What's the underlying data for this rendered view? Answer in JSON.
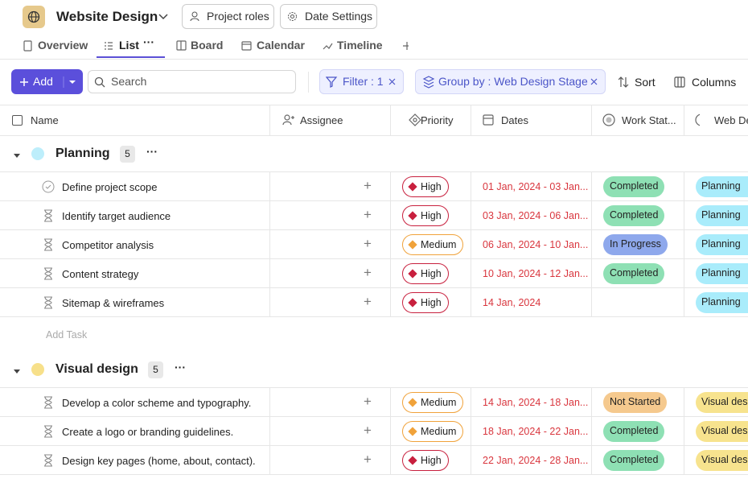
{
  "header": {
    "project": "Website Design",
    "project_roles": "Project roles",
    "date_settings": "Date Settings"
  },
  "tabs": [
    "Overview",
    "List",
    "Board",
    "Calendar",
    "Timeline"
  ],
  "toolbar": {
    "add": "Add",
    "search": "Search",
    "filter": "Filter : 1",
    "group_by": "Group by : Web Design Stage",
    "sort": "Sort",
    "columns": "Columns"
  },
  "columns": [
    "Name",
    "Assignee",
    "Priority",
    "Dates",
    "Work Stat...",
    "Web De"
  ],
  "groups": [
    {
      "name": "Planning",
      "color": "#bdeefb",
      "count": 5,
      "add_task": "Add Task",
      "tasks": [
        {
          "name": "Define project scope",
          "priority": "High",
          "priority_color": "#c8203e",
          "dates": "01 Jan, 2024 - 03 Jan...",
          "status": "Completed",
          "status_color": "#8ee0b4",
          "stage": "Planning",
          "stage_color": "#a9ecfb"
        },
        {
          "name": "Identify target audience",
          "priority": "High",
          "priority_color": "#c8203e",
          "dates": "03 Jan, 2024 - 06 Jan...",
          "status": "Completed",
          "status_color": "#8ee0b4",
          "stage": "Planning",
          "stage_color": "#a9ecfb"
        },
        {
          "name": "Competitor analysis",
          "priority": "Medium",
          "priority_color": "#f0a23a",
          "dates": "06 Jan, 2024 - 10 Jan...",
          "status": "In Progress",
          "status_color": "#8ea8ec",
          "stage": "Planning",
          "stage_color": "#a9ecfb"
        },
        {
          "name": "Content strategy",
          "priority": "High",
          "priority_color": "#c8203e",
          "dates": "10 Jan, 2024 - 12 Jan...",
          "status": "Completed",
          "status_color": "#8ee0b4",
          "stage": "Planning",
          "stage_color": "#a9ecfb"
        },
        {
          "name": "Sitemap & wireframes",
          "priority": "High",
          "priority_color": "#c8203e",
          "dates": "14 Jan, 2024",
          "status": null,
          "status_color": null,
          "stage": "Planning",
          "stage_color": "#a9ecfb"
        }
      ]
    },
    {
      "name": "Visual design",
      "color": "#f7e08a",
      "count": 5,
      "tasks": [
        {
          "name": "Develop a color scheme and typography.",
          "priority": "Medium",
          "priority_color": "#f0a23a",
          "dates": "14 Jan, 2024 - 18 Jan...",
          "status": "Not Started",
          "status_color": "#f5c98e",
          "stage": "Visual desig",
          "stage_color": "#f7e38e"
        },
        {
          "name": "Create a logo or branding guidelines.",
          "priority": "Medium",
          "priority_color": "#f0a23a",
          "dates": "18 Jan, 2024 - 22 Jan...",
          "status": "Completed",
          "status_color": "#8ee0b4",
          "stage": "Visual desig",
          "stage_color": "#f7e38e"
        },
        {
          "name": "Design key pages (home, about, contact).",
          "priority": "High",
          "priority_color": "#c8203e",
          "dates": "22 Jan, 2024 - 28 Jan...",
          "status": "Completed",
          "status_color": "#8ee0b4",
          "stage": "Visual desig",
          "stage_color": "#f7e38e"
        }
      ]
    }
  ]
}
